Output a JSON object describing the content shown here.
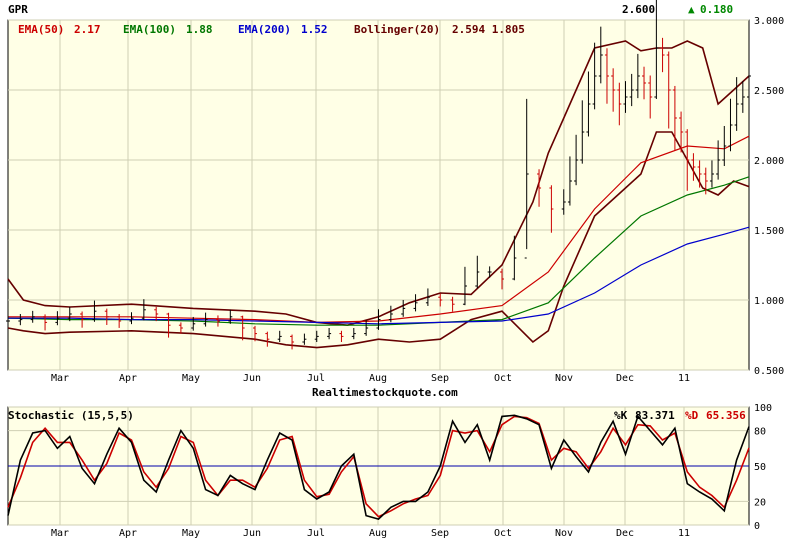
{
  "ticker": "GPR",
  "last_price": "2.600",
  "change_arrow": "▲",
  "change": "0.180",
  "watermark": "Realtimestockquote.com",
  "legend": {
    "ema50": {
      "label": "EMA(50)",
      "value": "2.17",
      "color": "#cc0000"
    },
    "ema100": {
      "label": "EMA(100)",
      "value": "1.88",
      "color": "#007700"
    },
    "ema200": {
      "label": "EMA(200)",
      "value": "1.52",
      "color": "#0000cc"
    },
    "boll": {
      "label": "Bollinger(20)",
      "values": "2.594 1.805",
      "color": "#660000"
    }
  },
  "stoch": {
    "title": "Stochastic (15,5,5)",
    "k_label": "%K",
    "k_value": "83.371",
    "d_label": "%D",
    "d_value": "65.356",
    "k_color": "#000000",
    "d_color": "#cc0000",
    "ref_color": "#0000aa"
  },
  "colors": {
    "bg": "#ffffe6",
    "grid": "#cfcfb4",
    "up": "#000000",
    "down": "#cc0000"
  },
  "chart_data": [
    {
      "type": "candlestick",
      "title": "GPR",
      "x_ticks": [
        "Mar",
        "Apr",
        "May",
        "Jun",
        "Jul",
        "Aug",
        "Sep",
        "Oct",
        "Nov",
        "Dec",
        "11"
      ],
      "y_ticks": [
        "3.000",
        "2.500",
        "2.000",
        "1.500",
        "1.000",
        "0.500"
      ],
      "ylim": [
        0.5,
        3.0
      ],
      "series": [
        {
          "name": "Price",
          "x": [
            0,
            4,
            8,
            12,
            16,
            20,
            24,
            28,
            32,
            36,
            40,
            44,
            48,
            52,
            56,
            60,
            64,
            68,
            72,
            76,
            80,
            84,
            88,
            92,
            96,
            100,
            104,
            108,
            112,
            116,
            120,
            124,
            128,
            132,
            136,
            140,
            144,
            148,
            152,
            156,
            160,
            164,
            168,
            172,
            176,
            180,
            182,
            184,
            186,
            188,
            190,
            192,
            194,
            196,
            198,
            200,
            202,
            204,
            206,
            208,
            210,
            212,
            214,
            216,
            218,
            220,
            222,
            224,
            226,
            228,
            230,
            232,
            234,
            236,
            238,
            240
          ],
          "values": [
            0.85,
            0.86,
            0.88,
            0.84,
            0.87,
            0.9,
            0.86,
            0.92,
            0.88,
            0.85,
            0.87,
            0.93,
            0.9,
            0.82,
            0.8,
            0.83,
            0.86,
            0.85,
            0.88,
            0.8,
            0.76,
            0.72,
            0.74,
            0.7,
            0.72,
            0.74,
            0.76,
            0.74,
            0.76,
            0.8,
            0.86,
            0.9,
            0.94,
            0.98,
            1.02,
            1.0,
            0.97,
            1.1,
            1.2,
            1.2,
            1.15,
            1.3,
            1.9,
            1.8,
            1.65,
            1.7,
            1.85,
            2.0,
            2.2,
            2.4,
            2.6,
            2.75,
            2.6,
            2.5,
            2.4,
            2.45,
            2.5,
            2.6,
            2.55,
            2.45,
            2.8,
            2.75,
            2.5,
            2.3,
            2.2,
            2.0,
            1.95,
            1.9,
            1.85,
            1.9,
            2.0,
            2.1,
            2.25,
            2.4,
            2.45,
            2.6
          ]
        },
        {
          "name": "EMA(50)",
          "x": [
            0,
            20,
            40,
            60,
            80,
            100,
            120,
            140,
            160,
            175,
            190,
            205,
            220,
            232,
            240
          ],
          "values": [
            0.88,
            0.88,
            0.88,
            0.87,
            0.86,
            0.84,
            0.85,
            0.9,
            0.96,
            1.2,
            1.65,
            1.98,
            2.1,
            2.08,
            2.17
          ]
        },
        {
          "name": "EMA(100)",
          "x": [
            0,
            20,
            40,
            60,
            80,
            100,
            120,
            140,
            160,
            175,
            190,
            205,
            220,
            232,
            240
          ],
          "values": [
            0.87,
            0.86,
            0.86,
            0.85,
            0.83,
            0.82,
            0.82,
            0.84,
            0.86,
            0.98,
            1.3,
            1.6,
            1.75,
            1.82,
            1.88
          ]
        },
        {
          "name": "EMA(200)",
          "x": [
            0,
            20,
            40,
            60,
            80,
            100,
            120,
            140,
            160,
            175,
            190,
            205,
            220,
            232,
            240
          ],
          "values": [
            0.87,
            0.87,
            0.86,
            0.86,
            0.85,
            0.84,
            0.83,
            0.84,
            0.85,
            0.9,
            1.05,
            1.25,
            1.4,
            1.47,
            1.52
          ]
        },
        {
          "name": "Bollinger upper",
          "x": [
            0,
            5,
            12,
            20,
            40,
            60,
            80,
            90,
            100,
            110,
            120,
            130,
            140,
            150,
            160,
            170,
            175,
            180,
            190,
            200,
            205,
            210,
            215,
            220,
            225,
            230,
            235,
            240
          ],
          "values": [
            1.15,
            1.0,
            0.96,
            0.95,
            0.97,
            0.94,
            0.92,
            0.9,
            0.84,
            0.82,
            0.88,
            0.98,
            1.05,
            1.04,
            1.25,
            1.7,
            2.05,
            2.3,
            2.8,
            2.85,
            2.78,
            2.8,
            2.8,
            2.85,
            2.8,
            2.4,
            2.5,
            2.6
          ]
        },
        {
          "name": "Bollinger lower",
          "x": [
            0,
            5,
            12,
            20,
            40,
            60,
            80,
            90,
            100,
            110,
            120,
            130,
            140,
            150,
            160,
            170,
            175,
            180,
            190,
            200,
            205,
            210,
            215,
            220,
            225,
            230,
            235,
            240
          ],
          "values": [
            0.8,
            0.78,
            0.76,
            0.77,
            0.78,
            0.76,
            0.72,
            0.68,
            0.66,
            0.68,
            0.72,
            0.7,
            0.72,
            0.86,
            0.92,
            0.7,
            0.78,
            1.1,
            1.6,
            1.8,
            1.9,
            2.2,
            2.2,
            2.0,
            1.8,
            1.75,
            1.85,
            1.81
          ]
        }
      ]
    },
    {
      "type": "line",
      "title": "Stochastic (15,5,5)",
      "y_ticks": [
        "100",
        "80",
        "50",
        "20",
        "0"
      ],
      "ylim": [
        0,
        100
      ],
      "reference_line": 50,
      "series": [
        {
          "name": "%K",
          "x": [
            0,
            4,
            8,
            12,
            16,
            20,
            24,
            28,
            32,
            36,
            40,
            44,
            48,
            52,
            56,
            60,
            64,
            68,
            72,
            76,
            80,
            84,
            88,
            92,
            96,
            100,
            104,
            108,
            112,
            116,
            120,
            124,
            128,
            132,
            136,
            140,
            144,
            148,
            152,
            156,
            160,
            164,
            168,
            172,
            176,
            180,
            184,
            188,
            192,
            196,
            200,
            204,
            208,
            212,
            216,
            220,
            224,
            228,
            232,
            236,
            240
          ],
          "values": [
            8,
            55,
            78,
            80,
            65,
            75,
            48,
            35,
            60,
            82,
            70,
            38,
            28,
            55,
            80,
            65,
            30,
            25,
            42,
            35,
            30,
            55,
            78,
            72,
            30,
            22,
            28,
            50,
            60,
            8,
            5,
            15,
            20,
            20,
            28,
            50,
            88,
            70,
            85,
            55,
            92,
            93,
            90,
            85,
            48,
            72,
            58,
            45,
            70,
            88,
            60,
            92,
            80,
            68,
            82,
            35,
            28,
            22,
            12,
            55,
            83.371
          ]
        },
        {
          "name": "%D",
          "x": [
            0,
            4,
            8,
            12,
            16,
            20,
            24,
            28,
            32,
            36,
            40,
            44,
            48,
            52,
            56,
            60,
            64,
            68,
            72,
            76,
            80,
            84,
            88,
            92,
            96,
            100,
            104,
            108,
            112,
            116,
            120,
            124,
            128,
            132,
            136,
            140,
            144,
            148,
            152,
            156,
            160,
            164,
            168,
            172,
            176,
            180,
            184,
            188,
            192,
            196,
            200,
            204,
            208,
            212,
            216,
            220,
            224,
            228,
            232,
            236,
            240
          ],
          "values": [
            15,
            40,
            70,
            82,
            70,
            70,
            55,
            38,
            52,
            78,
            72,
            45,
            32,
            48,
            75,
            70,
            38,
            25,
            38,
            38,
            32,
            48,
            72,
            75,
            38,
            24,
            26,
            45,
            58,
            18,
            7,
            12,
            18,
            22,
            25,
            42,
            80,
            78,
            80,
            62,
            85,
            92,
            91,
            86,
            55,
            65,
            62,
            48,
            62,
            82,
            68,
            85,
            84,
            72,
            78,
            45,
            32,
            25,
            15,
            38,
            65.356
          ]
        }
      ]
    }
  ]
}
